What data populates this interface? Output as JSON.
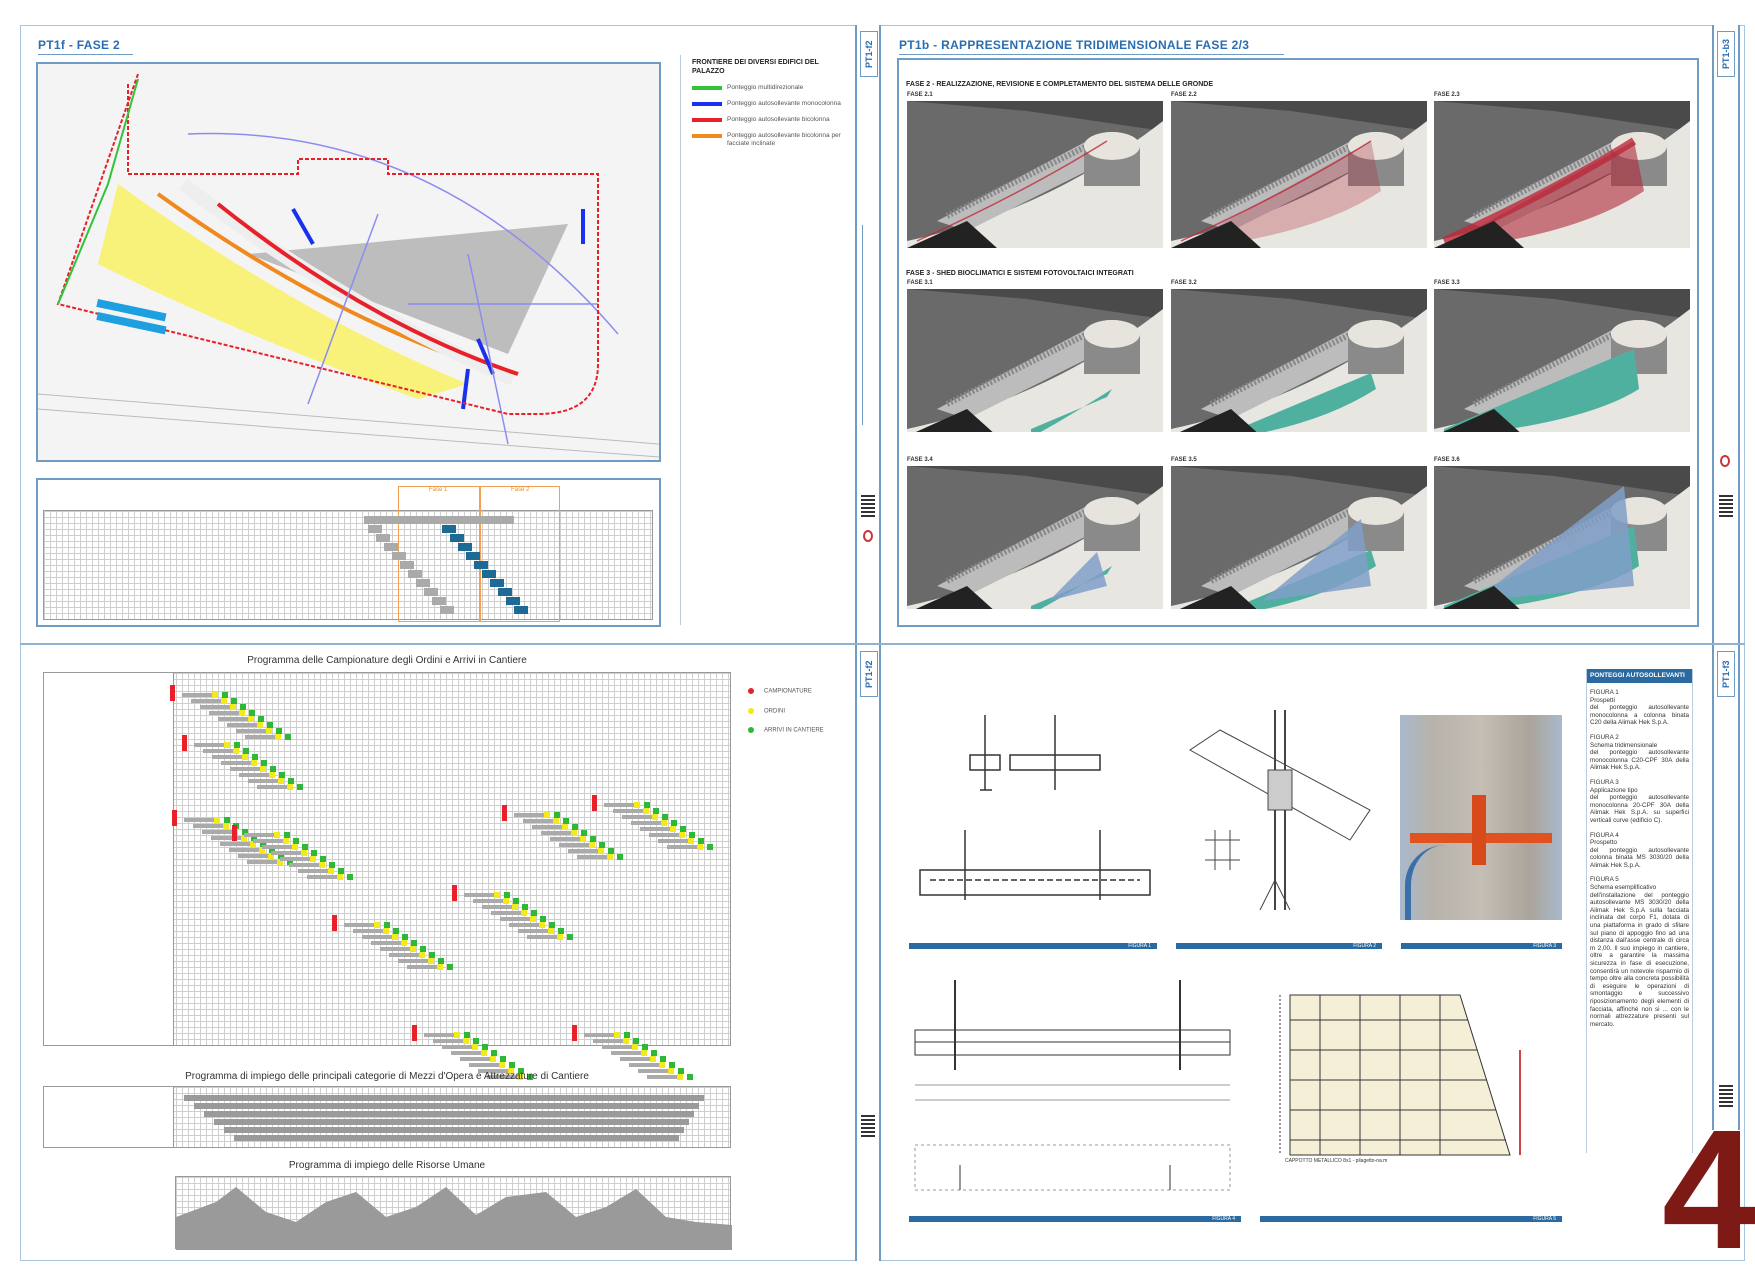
{
  "sheet_number": "4",
  "accent_color": "#2a6db0",
  "panels": {
    "tl": {
      "title": "PT1f - FASE 2",
      "strip_code": "PT1-f2",
      "legend": {
        "title": "FRONTIERE DEI DIVERSI EDIFICI DEL PALAZZO",
        "items": [
          {
            "label": "Ponteggio multidirezionale",
            "color": "#33c23a"
          },
          {
            "label": "Ponteggio autosollevante monocolonna",
            "color": "#1a2ff0"
          },
          {
            "label": "Ponteggio autosollevante bicolonna",
            "color": "#e8202a"
          },
          {
            "label": "Ponteggio autosollevante bicolonna per facciate inclinate",
            "color": "#f08a1e"
          }
        ]
      },
      "gantt": {
        "phase_labels": [
          "Fase 1",
          "Fase 2"
        ]
      }
    },
    "tr": {
      "title": "PT1b - RAPPRESENTAZIONE TRIDIMENSIONALE FASE 2/3",
      "strip_code": "PT1-b3",
      "section1": "FASE 2 - REALIZZAZIONE, REVISIONE E COMPLETAMENTO DEL SISTEMA DELLE GRONDE",
      "section2": "FASE 3 - SHED BIOCLIMATICI E SISTEMI FOTOVOLTAICI INTEGRATI",
      "renders": [
        {
          "label": "FASE 2.1",
          "overlay": "red-lines"
        },
        {
          "label": "FASE 2.2",
          "overlay": "red-grid"
        },
        {
          "label": "FASE 2.3",
          "overlay": "red-full"
        },
        {
          "label": "FASE 3.1",
          "overlay": "teal-small"
        },
        {
          "label": "FASE 3.2",
          "overlay": "teal-mid"
        },
        {
          "label": "FASE 3.3",
          "overlay": "teal-full"
        },
        {
          "label": "FASE 3.4",
          "overlay": "blue-small"
        },
        {
          "label": "FASE 3.5",
          "overlay": "blue-mid"
        },
        {
          "label": "FASE 3.6",
          "overlay": "blue-full"
        }
      ]
    },
    "bl": {
      "strip_code": "PT1-f2",
      "chart1_title": "Programma delle Campionature degli Ordini e Arrivi in Cantiere",
      "legend": [
        {
          "label": "CAMPIONATURE",
          "color": "#e8202a"
        },
        {
          "label": "ORDINI",
          "color": "#f2ea1a"
        },
        {
          "label": "ARRIVI IN CANTIERE",
          "color": "#2db83a"
        }
      ],
      "chart2_title": "Programma di impiego delle principali categorie di Mezzi d'Opera e Attrezzature di Cantiere",
      "chart3_title": "Programma di impiego delle Risorse Umane"
    },
    "br": {
      "strip_code": "PT1-f3",
      "figure_captions": [
        "FIGURA 1",
        "FIGURA 2",
        "FIGURA 3",
        "FIGURA 4",
        "FIGURA 5"
      ],
      "drawing_note": "CAPPOTTO METALLICO 8x1 - pilagetto-na.m",
      "side": {
        "header": "PONTEGGI AUTOSOLLEVANTI",
        "figures": [
          {
            "label": "FIGURA 1",
            "heading": "Prospetti",
            "text": "del ponteggio autosollevante monocolonna a colonna binata C20 della Alimak Hek S.p.A."
          },
          {
            "label": "FIGURA 2",
            "heading": "Schema tridimensionale",
            "text": "del ponteggio autosollevante monocolonna C20-CPF 30A della Alimak Hek S.p.A."
          },
          {
            "label": "FIGURA 3",
            "heading": "Applicazione tipo",
            "text": "del ponteggio autosollevante monocolonna 20-CPF 30A della Alimak Hek S.p.A. su superfici verticali curve (edificio C)."
          },
          {
            "label": "FIGURA 4",
            "heading": "Prospetto",
            "text": "del ponteggio autosollevante colonna binata MS 3030/20 della Alimak Hek S.p.A."
          },
          {
            "label": "FIGURA 5",
            "heading": "Schema esemplificativo",
            "text": "dell'installazione del ponteggio autosollevante MS 3030/20 della Alimak Hek S.p.A sulla facciata inclinata del corpo F1, dotata di una piattaforma in grado di sfilare sul piano di appoggio fino ad una distanza dall'asse centrale di circa m 2,00. Il suo impiego in cantiere, oltre a garantire la massima sicurezza in fase di esecuzione, consentirà un notevole risparmio di tempo oltre alla concreta possibilità di eseguire le operazioni di smontaggio e successivo riposizionamento degli elementi di facciata, affinché non si ... con le normali attrezzature presenti sul mercato."
          }
        ]
      }
    }
  }
}
